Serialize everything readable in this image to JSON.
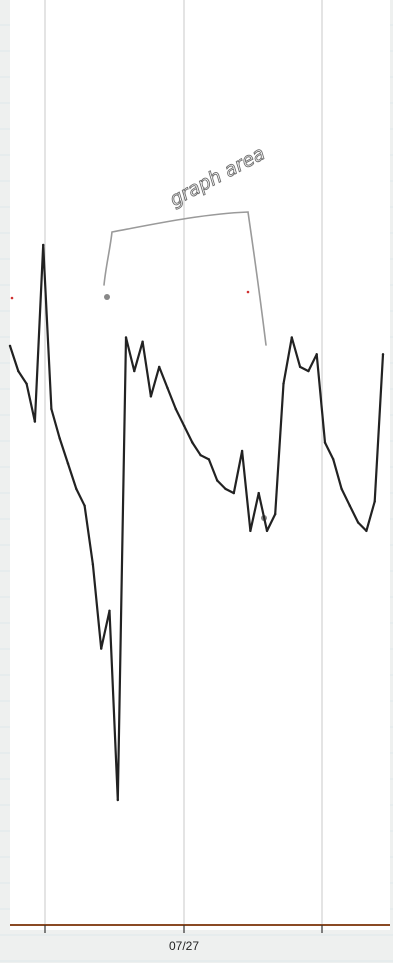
{
  "chart_data": {
    "type": "line",
    "title": "",
    "xlabel": "",
    "ylabel": "",
    "x_tick_labels": [
      "07/27"
    ],
    "grid": "vertical",
    "legend": "none",
    "series": [
      {
        "color": "#222222",
        "values": [
          0.58,
          0.52,
          0.49,
          0.4,
          0.82,
          0.43,
          0.36,
          0.3,
          0.24,
          0.2,
          0.06,
          -0.14,
          -0.05,
          -0.5,
          0.6,
          0.52,
          0.59,
          0.46,
          0.53,
          0.48,
          0.43,
          0.39,
          0.35,
          0.32,
          0.31,
          0.26,
          0.24,
          0.23,
          0.33,
          0.14,
          0.23,
          0.14,
          0.18,
          0.49,
          0.6,
          0.53,
          0.52,
          0.56,
          0.35,
          0.31,
          0.24,
          0.2,
          0.16,
          0.14,
          0.21,
          0.56
        ]
      }
    ],
    "annotations": [
      {
        "text": "graph area",
        "color": "#6e6e6e"
      }
    ],
    "line_color": "#222222",
    "annotation_color": "#9a9a9a",
    "grid_color": "#c8c8c8",
    "axis_color": "#8a4a24"
  }
}
